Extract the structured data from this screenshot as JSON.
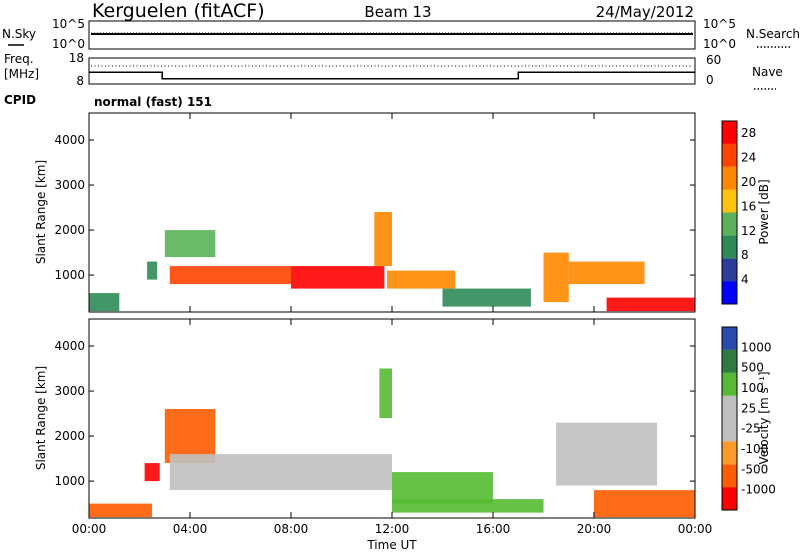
{
  "header": {
    "station": "Kerguelen (fitACF)",
    "beam": "Beam 13",
    "date": "24/May/2012"
  },
  "noise_panel": {
    "left_label": "N.Sky",
    "right_label": "N.Search",
    "left_ticks": [
      "10^5",
      "10^0"
    ],
    "right_ticks": [
      "10^5",
      "10^0"
    ]
  },
  "freq_panel": {
    "left_label_1": "Freq.",
    "left_label_2": "[MHz]",
    "left_ticks": [
      "18",
      "8"
    ],
    "right_label": "Nave",
    "right_ticks": [
      "60",
      "0"
    ]
  },
  "cpid_panel": {
    "label": "CPID",
    "text": "normal (fast) 151"
  },
  "colors": {
    "power": [
      "#0000ff",
      "#2a3d99",
      "#2e8b57",
      "#5ab25a",
      "#ffc20e",
      "#ff8800",
      "#ff4400",
      "#ff0000"
    ],
    "velocity": [
      "#2a4ab0",
      "#2e7d40",
      "#55bb33",
      "#bfbfbf",
      "#bfbfbf",
      "#ff9a2a",
      "#ff5c00",
      "#ff0000"
    ],
    "ground_scatter": "#c0c0c0"
  },
  "chart_data": [
    {
      "type": "heatmap",
      "name": "power",
      "ylabel": "Slant Range [km]",
      "y_ticks": [
        "1000",
        "2000",
        "3000",
        "4000"
      ],
      "ylim": [
        180,
        4600
      ],
      "x_ticks": [
        "00:00",
        "04:00",
        "08:00",
        "12:00",
        "16:00",
        "20:00",
        "00:00"
      ],
      "xlim": [
        0,
        24
      ],
      "colorbar_label": "Power [dB]",
      "colorbar_ticks": [
        "4",
        "8",
        "12",
        "16",
        "20",
        "24",
        "28"
      ],
      "colorbar_range": [
        0,
        30
      ],
      "regions": [
        {
          "t": [
            0.0,
            1.2
          ],
          "r": [
            200,
            600
          ],
          "v": 10
        },
        {
          "t": [
            2.3,
            2.7
          ],
          "r": [
            900,
            1300
          ],
          "v": 10
        },
        {
          "t": [
            3.0,
            5.0
          ],
          "r": [
            1400,
            2000
          ],
          "v": 12
        },
        {
          "t": [
            3.2,
            8.0
          ],
          "r": [
            800,
            1200
          ],
          "v": 26
        },
        {
          "t": [
            8.0,
            11.7
          ],
          "r": [
            700,
            1200
          ],
          "v": 28
        },
        {
          "t": [
            11.3,
            12.0
          ],
          "r": [
            1200,
            2400
          ],
          "v": 22
        },
        {
          "t": [
            11.8,
            14.5
          ],
          "r": [
            700,
            1100
          ],
          "v": 20
        },
        {
          "t": [
            14.0,
            17.5
          ],
          "r": [
            300,
            700
          ],
          "v": 10
        },
        {
          "t": [
            18.0,
            19.0
          ],
          "r": [
            400,
            1500
          ],
          "v": 20
        },
        {
          "t": [
            19.0,
            22.0
          ],
          "r": [
            800,
            1300
          ],
          "v": 20
        },
        {
          "t": [
            20.5,
            24.0
          ],
          "r": [
            200,
            500
          ],
          "v": 28
        }
      ]
    },
    {
      "type": "heatmap",
      "name": "velocity",
      "ylabel": "Slant Range [km]",
      "y_ticks": [
        "1000",
        "2000",
        "3000",
        "4000"
      ],
      "ylim": [
        180,
        4600
      ],
      "x_ticks": [
        "00:00",
        "04:00",
        "08:00",
        "12:00",
        "16:00",
        "20:00",
        "00:00"
      ],
      "xlim": [
        0,
        24
      ],
      "xlabel": "Time UT",
      "colorbar_label": "Velocity [m s⁻¹]",
      "colorbar_ticks": [
        "1000",
        "500",
        "100",
        "25",
        "-25",
        "-100",
        "-500",
        "-1000"
      ],
      "colorbar_range": [
        -1000,
        1000
      ],
      "regions": [
        {
          "t": [
            0.0,
            2.5
          ],
          "r": [
            200,
            500
          ],
          "v": -300
        },
        {
          "t": [
            2.2,
            2.8
          ],
          "r": [
            1000,
            1400
          ],
          "v": -600
        },
        {
          "t": [
            3.0,
            5.0
          ],
          "r": [
            1400,
            2600
          ],
          "v": -300
        },
        {
          "t": [
            3.2,
            12.0
          ],
          "r": [
            800,
            1600
          ],
          "v": 0
        },
        {
          "t": [
            11.5,
            12.0
          ],
          "r": [
            2400,
            3500
          ],
          "v": 150
        },
        {
          "t": [
            12.0,
            16.0
          ],
          "r": [
            500,
            1200
          ],
          "v": 150
        },
        {
          "t": [
            12.0,
            18.0
          ],
          "r": [
            300,
            600
          ],
          "v": 200
        },
        {
          "t": [
            18.5,
            22.5
          ],
          "r": [
            900,
            2300
          ],
          "v": 0
        },
        {
          "t": [
            20.0,
            24.0
          ],
          "r": [
            200,
            800
          ],
          "v": -400
        }
      ]
    },
    {
      "type": "line",
      "name": "frequency",
      "ylim": [
        8,
        18
      ],
      "series": [
        {
          "x": [
            0,
            2.9,
            2.9,
            17.0,
            17.0,
            24.0
          ],
          "y": [
            12.5,
            12.5,
            10.0,
            10.0,
            12.5,
            12.5
          ]
        }
      ]
    }
  ]
}
